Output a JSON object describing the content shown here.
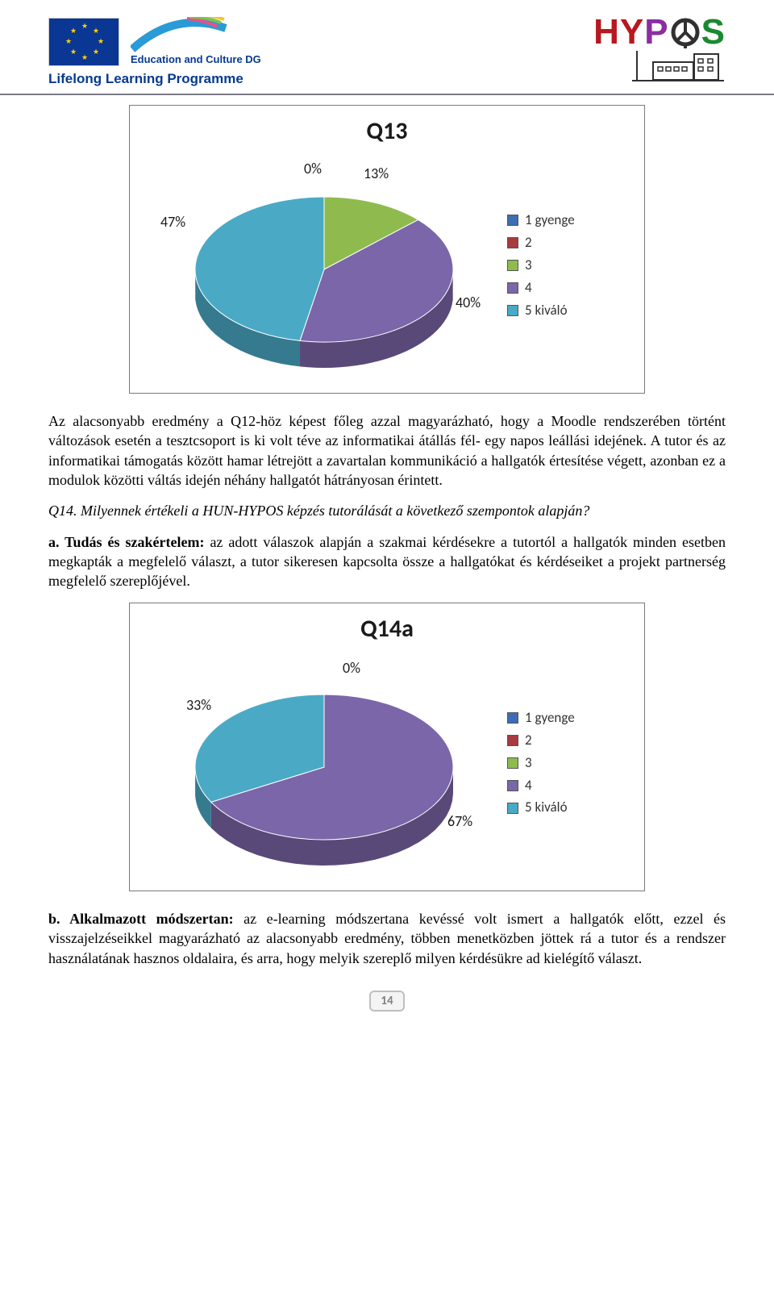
{
  "header": {
    "edu_text": "Education and Culture DG",
    "llp_text": "Lifelong Learning Programme",
    "hypos": {
      "h": "H",
      "y": "Y",
      "p": "P",
      "s": "S"
    }
  },
  "chart_q13": {
    "type": "pie",
    "title": "Q13",
    "labels": {
      "p0": "0%",
      "p13": "13%",
      "p40": "40%",
      "p47": "47%"
    },
    "slices": [
      {
        "name": "1 gyenge",
        "value": 0,
        "color": "#3d6db5"
      },
      {
        "name": "2",
        "value": 0,
        "color": "#a83b3f"
      },
      {
        "name": "3",
        "value": 13,
        "color": "#8fbb4e"
      },
      {
        "name": "4",
        "value": 40,
        "color": "#7a66a8"
      },
      {
        "name": "5 kiváló",
        "value": 47,
        "color": "#4aaac6"
      }
    ],
    "legend": [
      {
        "label": "1 gyenge",
        "color": "#3d6db5"
      },
      {
        "label": "2",
        "color": "#a83b3f"
      },
      {
        "label": "3",
        "color": "#8fbb4e"
      },
      {
        "label": "4",
        "color": "#7a66a8"
      },
      {
        "label": "5 kiváló",
        "color": "#4aaac6"
      }
    ],
    "chart_bg": "#ffffff",
    "title_fontsize": 30
  },
  "para1": "Az alacsonyabb eredmény a Q12-höz képest főleg azzal magyarázható, hogy a Moodle rendszerében történt változások esetén a tesztcsoport is ki volt téve az informatikai átállás fél- egy napos leállási idejének. A tutor és az informatikai támogatás között hamar létrejött a zavartalan kommunikáció a hallgatók értesítése végett, azonban ez a modulok közötti váltás idején néhány hallgatót hátrányosan érintett.",
  "q14_prompt": "Q14. Milyennek értékeli a HUN-HYPOS képzés tutorálását a következő szempontok alapján?",
  "q14a_lead_bold": "a. Tudás és szakértelem:",
  "q14a_lead_rest": " az adott válaszok alapján a szakmai kérdésekre a tutortól a hallgatók minden esetben megkapták a megfelelő választ, a tutor sikeresen kapcsolta össze a hallgatókat és kérdéseiket a projekt partnerség megfelelő szereplőjével.",
  "chart_q14a": {
    "type": "pie",
    "title": "Q14a",
    "labels": {
      "p0": "0%",
      "p33": "33%",
      "p67": "67%"
    },
    "slices": [
      {
        "name": "1 gyenge",
        "value": 0,
        "color": "#3d6db5"
      },
      {
        "name": "2",
        "value": 0,
        "color": "#a83b3f"
      },
      {
        "name": "3",
        "value": 0,
        "color": "#8fbb4e"
      },
      {
        "name": "4",
        "value": 67,
        "color": "#7a66a8"
      },
      {
        "name": "5 kiváló",
        "value": 33,
        "color": "#4aaac6"
      }
    ],
    "legend": [
      {
        "label": "1 gyenge",
        "color": "#3d6db5"
      },
      {
        "label": "2",
        "color": "#a83b3f"
      },
      {
        "label": "3",
        "color": "#8fbb4e"
      },
      {
        "label": "4",
        "color": "#7a66a8"
      },
      {
        "label": "5 kiváló",
        "color": "#4aaac6"
      }
    ],
    "chart_bg": "#ffffff",
    "title_fontsize": 30
  },
  "q14b_lead_bold": "b. Alkalmazott módszertan:",
  "q14b_lead_rest": " az e-learning módszertana kevéssé volt ismert a hallgatók előtt, ezzel és visszajelzéseikkel magyarázható az alacsonyabb eredmény, többen menetközben jöttek rá a tutor és a rendszer használatának hasznos oldalaira, és arra, hogy melyik szereplő milyen kérdésükre ad kielégítő választ.",
  "page_number": "14"
}
